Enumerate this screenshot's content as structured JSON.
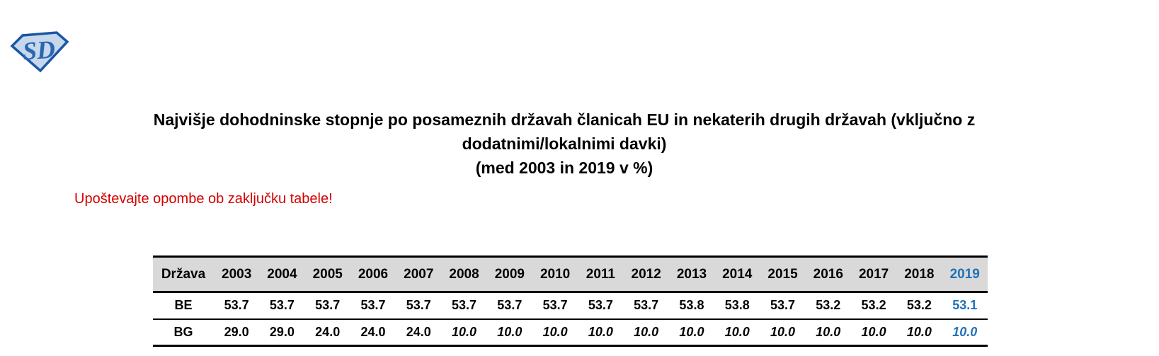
{
  "logo": {
    "letters": "SD",
    "shape": "diamond-shield-logo"
  },
  "title": {
    "lines": [
      "Najvišje dohodninske stopnje po posameznih državah članicah EU in nekaterih drugih državah (vključno z",
      "dodatnimi/lokalnimi davki)",
      "(med 2003 in 2019 v %)"
    ]
  },
  "note": {
    "text": "Upoštevajte opombe ob zaključku tabele!"
  },
  "colors": {
    "accent_blue": "#1f72b8",
    "note_red": "#d40000",
    "header_bg": "#d9d9d9",
    "logo_outline": "#1a57a5",
    "logo_fill": "#c8d8ec",
    "logo_letters": "#2b67b0"
  },
  "table": {
    "columns": [
      "Država",
      "2003",
      "2004",
      "2005",
      "2006",
      "2007",
      "2008",
      "2009",
      "2010",
      "2011",
      "2012",
      "2013",
      "2014",
      "2015",
      "2016",
      "2017",
      "2018",
      "2019"
    ],
    "highlight_column": "2019",
    "rows": [
      {
        "country": "BE",
        "values": [
          "53.7",
          "53.7",
          "53.7",
          "53.7",
          "53.7",
          "53.7",
          "53.7",
          "53.7",
          "53.7",
          "53.7",
          "53.8",
          "53.8",
          "53.7",
          "53.2",
          "53.2",
          "53.2",
          "53.1"
        ],
        "italic_from_index": null
      },
      {
        "country": "BG",
        "values": [
          "29.0",
          "29.0",
          "24.0",
          "24.0",
          "24.0",
          "10.0",
          "10.0",
          "10.0",
          "10.0",
          "10.0",
          "10.0",
          "10.0",
          "10.0",
          "10.0",
          "10.0",
          "10.0",
          "10.0"
        ],
        "italic_from_index": 5
      }
    ]
  }
}
